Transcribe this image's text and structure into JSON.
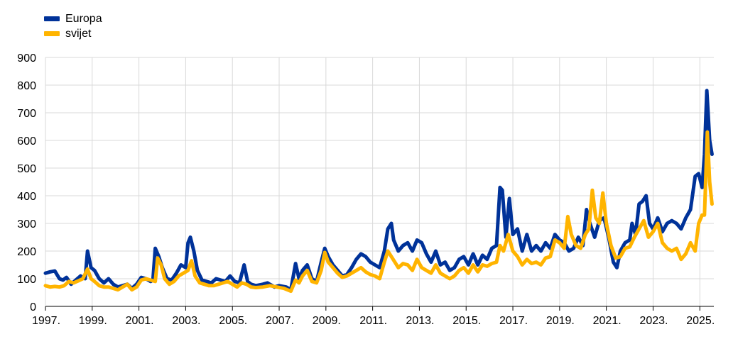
{
  "chart_data": {
    "type": "line",
    "title": "",
    "xlabel": "",
    "ylabel": "",
    "ylim": [
      0,
      900
    ],
    "yticks": [
      0,
      100,
      200,
      300,
      400,
      500,
      600,
      700,
      800,
      900
    ],
    "xlim": [
      1997.0,
      2025.6
    ],
    "xticks": [
      1997,
      1999,
      2001,
      2003,
      2005,
      2007,
      2009,
      2011,
      2013,
      2015,
      2017,
      2019,
      2021,
      2023,
      2025
    ],
    "xtick_labels": [
      "1997.",
      "1999.",
      "2001.",
      "2003.",
      "2005.",
      "2007.",
      "2009.",
      "2011.",
      "2013.",
      "2015.",
      "2017.",
      "2019.",
      "2021.",
      "2023.",
      "2025."
    ],
    "grid": true,
    "legend_position": "top-left",
    "series": [
      {
        "name": "Europa",
        "color": "#003299",
        "points": [
          [
            1997.0,
            120
          ],
          [
            1997.2,
            125
          ],
          [
            1997.4,
            128
          ],
          [
            1997.6,
            100
          ],
          [
            1997.75,
            95
          ],
          [
            1997.9,
            105
          ],
          [
            1998.1,
            80
          ],
          [
            1998.3,
            95
          ],
          [
            1998.5,
            110
          ],
          [
            1998.7,
            100
          ],
          [
            1998.8,
            200
          ],
          [
            1998.95,
            140
          ],
          [
            1999.1,
            130
          ],
          [
            1999.3,
            100
          ],
          [
            1999.5,
            85
          ],
          [
            1999.7,
            100
          ],
          [
            1999.9,
            80
          ],
          [
            2000.1,
            70
          ],
          [
            2000.3,
            75
          ],
          [
            2000.5,
            80
          ],
          [
            2000.7,
            65
          ],
          [
            2000.9,
            80
          ],
          [
            2001.1,
            105
          ],
          [
            2001.3,
            100
          ],
          [
            2001.5,
            90
          ],
          [
            2001.6,
            95
          ],
          [
            2001.7,
            210
          ],
          [
            2001.85,
            180
          ],
          [
            2002.0,
            140
          ],
          [
            2002.2,
            100
          ],
          [
            2002.4,
            95
          ],
          [
            2002.6,
            120
          ],
          [
            2002.8,
            150
          ],
          [
            2003.0,
            140
          ],
          [
            2003.1,
            230
          ],
          [
            2003.2,
            250
          ],
          [
            2003.35,
            200
          ],
          [
            2003.5,
            130
          ],
          [
            2003.7,
            95
          ],
          [
            2003.9,
            90
          ],
          [
            2004.1,
            85
          ],
          [
            2004.3,
            100
          ],
          [
            2004.5,
            95
          ],
          [
            2004.7,
            90
          ],
          [
            2004.9,
            110
          ],
          [
            2005.1,
            90
          ],
          [
            2005.3,
            85
          ],
          [
            2005.5,
            150
          ],
          [
            2005.65,
            90
          ],
          [
            2005.8,
            80
          ],
          [
            2006.0,
            75
          ],
          [
            2006.3,
            80
          ],
          [
            2006.5,
            85
          ],
          [
            2006.8,
            70
          ],
          [
            2007.0,
            75
          ],
          [
            2007.3,
            70
          ],
          [
            2007.5,
            60
          ],
          [
            2007.7,
            155
          ],
          [
            2007.85,
            100
          ],
          [
            2008.0,
            130
          ],
          [
            2008.2,
            150
          ],
          [
            2008.4,
            100
          ],
          [
            2008.6,
            90
          ],
          [
            2008.8,
            160
          ],
          [
            2008.95,
            210
          ],
          [
            2009.1,
            180
          ],
          [
            2009.3,
            150
          ],
          [
            2009.5,
            130
          ],
          [
            2009.7,
            110
          ],
          [
            2009.9,
            115
          ],
          [
            2010.1,
            140
          ],
          [
            2010.3,
            170
          ],
          [
            2010.5,
            190
          ],
          [
            2010.7,
            180
          ],
          [
            2010.9,
            160
          ],
          [
            2011.1,
            150
          ],
          [
            2011.3,
            140
          ],
          [
            2011.5,
            200
          ],
          [
            2011.65,
            280
          ],
          [
            2011.8,
            300
          ],
          [
            2011.9,
            240
          ],
          [
            2012.1,
            200
          ],
          [
            2012.3,
            220
          ],
          [
            2012.5,
            230
          ],
          [
            2012.7,
            200
          ],
          [
            2012.9,
            240
          ],
          [
            2013.1,
            230
          ],
          [
            2013.3,
            190
          ],
          [
            2013.5,
            160
          ],
          [
            2013.7,
            200
          ],
          [
            2013.9,
            150
          ],
          [
            2014.1,
            160
          ],
          [
            2014.3,
            130
          ],
          [
            2014.5,
            140
          ],
          [
            2014.7,
            170
          ],
          [
            2014.9,
            180
          ],
          [
            2015.1,
            150
          ],
          [
            2015.3,
            190
          ],
          [
            2015.5,
            150
          ],
          [
            2015.7,
            185
          ],
          [
            2015.9,
            170
          ],
          [
            2016.1,
            210
          ],
          [
            2016.3,
            220
          ],
          [
            2016.45,
            430
          ],
          [
            2016.55,
            420
          ],
          [
            2016.7,
            250
          ],
          [
            2016.85,
            390
          ],
          [
            2017.0,
            260
          ],
          [
            2017.2,
            280
          ],
          [
            2017.4,
            200
          ],
          [
            2017.6,
            260
          ],
          [
            2017.8,
            200
          ],
          [
            2018.0,
            220
          ],
          [
            2018.2,
            200
          ],
          [
            2018.4,
            230
          ],
          [
            2018.6,
            210
          ],
          [
            2018.8,
            260
          ],
          [
            2019.0,
            240
          ],
          [
            2019.2,
            230
          ],
          [
            2019.4,
            200
          ],
          [
            2019.6,
            210
          ],
          [
            2019.8,
            250
          ],
          [
            2020.0,
            220
          ],
          [
            2020.15,
            350
          ],
          [
            2020.3,
            300
          ],
          [
            2020.5,
            250
          ],
          [
            2020.7,
            310
          ],
          [
            2020.9,
            320
          ],
          [
            2021.1,
            250
          ],
          [
            2021.3,
            160
          ],
          [
            2021.45,
            140
          ],
          [
            2021.6,
            200
          ],
          [
            2021.8,
            230
          ],
          [
            2022.0,
            240
          ],
          [
            2022.1,
            300
          ],
          [
            2022.25,
            260
          ],
          [
            2022.4,
            370
          ],
          [
            2022.55,
            380
          ],
          [
            2022.7,
            400
          ],
          [
            2022.85,
            300
          ],
          [
            2023.0,
            280
          ],
          [
            2023.2,
            320
          ],
          [
            2023.4,
            270
          ],
          [
            2023.6,
            300
          ],
          [
            2023.8,
            310
          ],
          [
            2024.0,
            300
          ],
          [
            2024.2,
            280
          ],
          [
            2024.4,
            320
          ],
          [
            2024.6,
            350
          ],
          [
            2024.8,
            470
          ],
          [
            2024.95,
            480
          ],
          [
            2025.1,
            430
          ],
          [
            2025.2,
            550
          ],
          [
            2025.3,
            780
          ],
          [
            2025.42,
            600
          ],
          [
            2025.52,
            550
          ]
        ]
      },
      {
        "name": "svijet",
        "color": "#ffb400",
        "points": [
          [
            1997.0,
            75
          ],
          [
            1997.2,
            70
          ],
          [
            1997.4,
            72
          ],
          [
            1997.6,
            70
          ],
          [
            1997.8,
            75
          ],
          [
            1998.0,
            90
          ],
          [
            1998.2,
            85
          ],
          [
            1998.4,
            92
          ],
          [
            1998.6,
            100
          ],
          [
            1998.8,
            135
          ],
          [
            1998.95,
            100
          ],
          [
            1999.1,
            90
          ],
          [
            1999.3,
            75
          ],
          [
            1999.5,
            70
          ],
          [
            1999.7,
            70
          ],
          [
            1999.9,
            65
          ],
          [
            2000.1,
            60
          ],
          [
            2000.3,
            70
          ],
          [
            2000.5,
            80
          ],
          [
            2000.7,
            60
          ],
          [
            2000.9,
            70
          ],
          [
            2001.1,
            95
          ],
          [
            2001.3,
            100
          ],
          [
            2001.5,
            95
          ],
          [
            2001.7,
            90
          ],
          [
            2001.8,
            175
          ],
          [
            2001.95,
            150
          ],
          [
            2002.1,
            100
          ],
          [
            2002.3,
            80
          ],
          [
            2002.5,
            90
          ],
          [
            2002.7,
            110
          ],
          [
            2002.9,
            120
          ],
          [
            2003.1,
            130
          ],
          [
            2003.25,
            165
          ],
          [
            2003.4,
            110
          ],
          [
            2003.6,
            85
          ],
          [
            2003.8,
            80
          ],
          [
            2004.0,
            75
          ],
          [
            2004.2,
            75
          ],
          [
            2004.4,
            80
          ],
          [
            2004.6,
            85
          ],
          [
            2004.8,
            90
          ],
          [
            2005.0,
            80
          ],
          [
            2005.2,
            70
          ],
          [
            2005.4,
            85
          ],
          [
            2005.6,
            80
          ],
          [
            2005.8,
            70
          ],
          [
            2006.0,
            68
          ],
          [
            2006.3,
            70
          ],
          [
            2006.6,
            75
          ],
          [
            2006.9,
            70
          ],
          [
            2007.2,
            65
          ],
          [
            2007.5,
            55
          ],
          [
            2007.7,
            95
          ],
          [
            2007.85,
            85
          ],
          [
            2008.0,
            110
          ],
          [
            2008.2,
            130
          ],
          [
            2008.4,
            90
          ],
          [
            2008.6,
            85
          ],
          [
            2008.8,
            130
          ],
          [
            2008.95,
            195
          ],
          [
            2009.1,
            160
          ],
          [
            2009.3,
            140
          ],
          [
            2009.5,
            120
          ],
          [
            2009.7,
            105
          ],
          [
            2009.9,
            110
          ],
          [
            2010.1,
            120
          ],
          [
            2010.3,
            130
          ],
          [
            2010.5,
            140
          ],
          [
            2010.7,
            125
          ],
          [
            2010.9,
            115
          ],
          [
            2011.1,
            110
          ],
          [
            2011.3,
            100
          ],
          [
            2011.5,
            160
          ],
          [
            2011.65,
            200
          ],
          [
            2011.8,
            180
          ],
          [
            2011.95,
            160
          ],
          [
            2012.1,
            140
          ],
          [
            2012.3,
            155
          ],
          [
            2012.5,
            150
          ],
          [
            2012.7,
            130
          ],
          [
            2012.9,
            170
          ],
          [
            2013.1,
            140
          ],
          [
            2013.3,
            130
          ],
          [
            2013.5,
            120
          ],
          [
            2013.7,
            150
          ],
          [
            2013.9,
            120
          ],
          [
            2014.1,
            110
          ],
          [
            2014.3,
            100
          ],
          [
            2014.5,
            110
          ],
          [
            2014.7,
            130
          ],
          [
            2014.9,
            140
          ],
          [
            2015.1,
            120
          ],
          [
            2015.3,
            150
          ],
          [
            2015.5,
            125
          ],
          [
            2015.7,
            150
          ],
          [
            2015.9,
            145
          ],
          [
            2016.1,
            155
          ],
          [
            2016.3,
            160
          ],
          [
            2016.45,
            220
          ],
          [
            2016.6,
            200
          ],
          [
            2016.8,
            260
          ],
          [
            2017.0,
            200
          ],
          [
            2017.2,
            180
          ],
          [
            2017.4,
            150
          ],
          [
            2017.6,
            170
          ],
          [
            2017.8,
            155
          ],
          [
            2018.0,
            160
          ],
          [
            2018.2,
            150
          ],
          [
            2018.4,
            175
          ],
          [
            2018.6,
            180
          ],
          [
            2018.8,
            240
          ],
          [
            2019.0,
            230
          ],
          [
            2019.2,
            210
          ],
          [
            2019.35,
            325
          ],
          [
            2019.5,
            260
          ],
          [
            2019.7,
            220
          ],
          [
            2019.9,
            210
          ],
          [
            2020.1,
            260
          ],
          [
            2020.25,
            280
          ],
          [
            2020.4,
            420
          ],
          [
            2020.55,
            320
          ],
          [
            2020.7,
            300
          ],
          [
            2020.85,
            410
          ],
          [
            2021.0,
            300
          ],
          [
            2021.2,
            220
          ],
          [
            2021.4,
            175
          ],
          [
            2021.6,
            180
          ],
          [
            2021.8,
            210
          ],
          [
            2022.0,
            215
          ],
          [
            2022.2,
            250
          ],
          [
            2022.4,
            280
          ],
          [
            2022.6,
            310
          ],
          [
            2022.8,
            250
          ],
          [
            2023.0,
            270
          ],
          [
            2023.2,
            300
          ],
          [
            2023.4,
            230
          ],
          [
            2023.6,
            210
          ],
          [
            2023.8,
            200
          ],
          [
            2024.0,
            210
          ],
          [
            2024.2,
            170
          ],
          [
            2024.4,
            190
          ],
          [
            2024.6,
            230
          ],
          [
            2024.8,
            200
          ],
          [
            2024.95,
            300
          ],
          [
            2025.1,
            330
          ],
          [
            2025.2,
            330
          ],
          [
            2025.32,
            630
          ],
          [
            2025.42,
            450
          ],
          [
            2025.52,
            370
          ]
        ]
      }
    ]
  }
}
